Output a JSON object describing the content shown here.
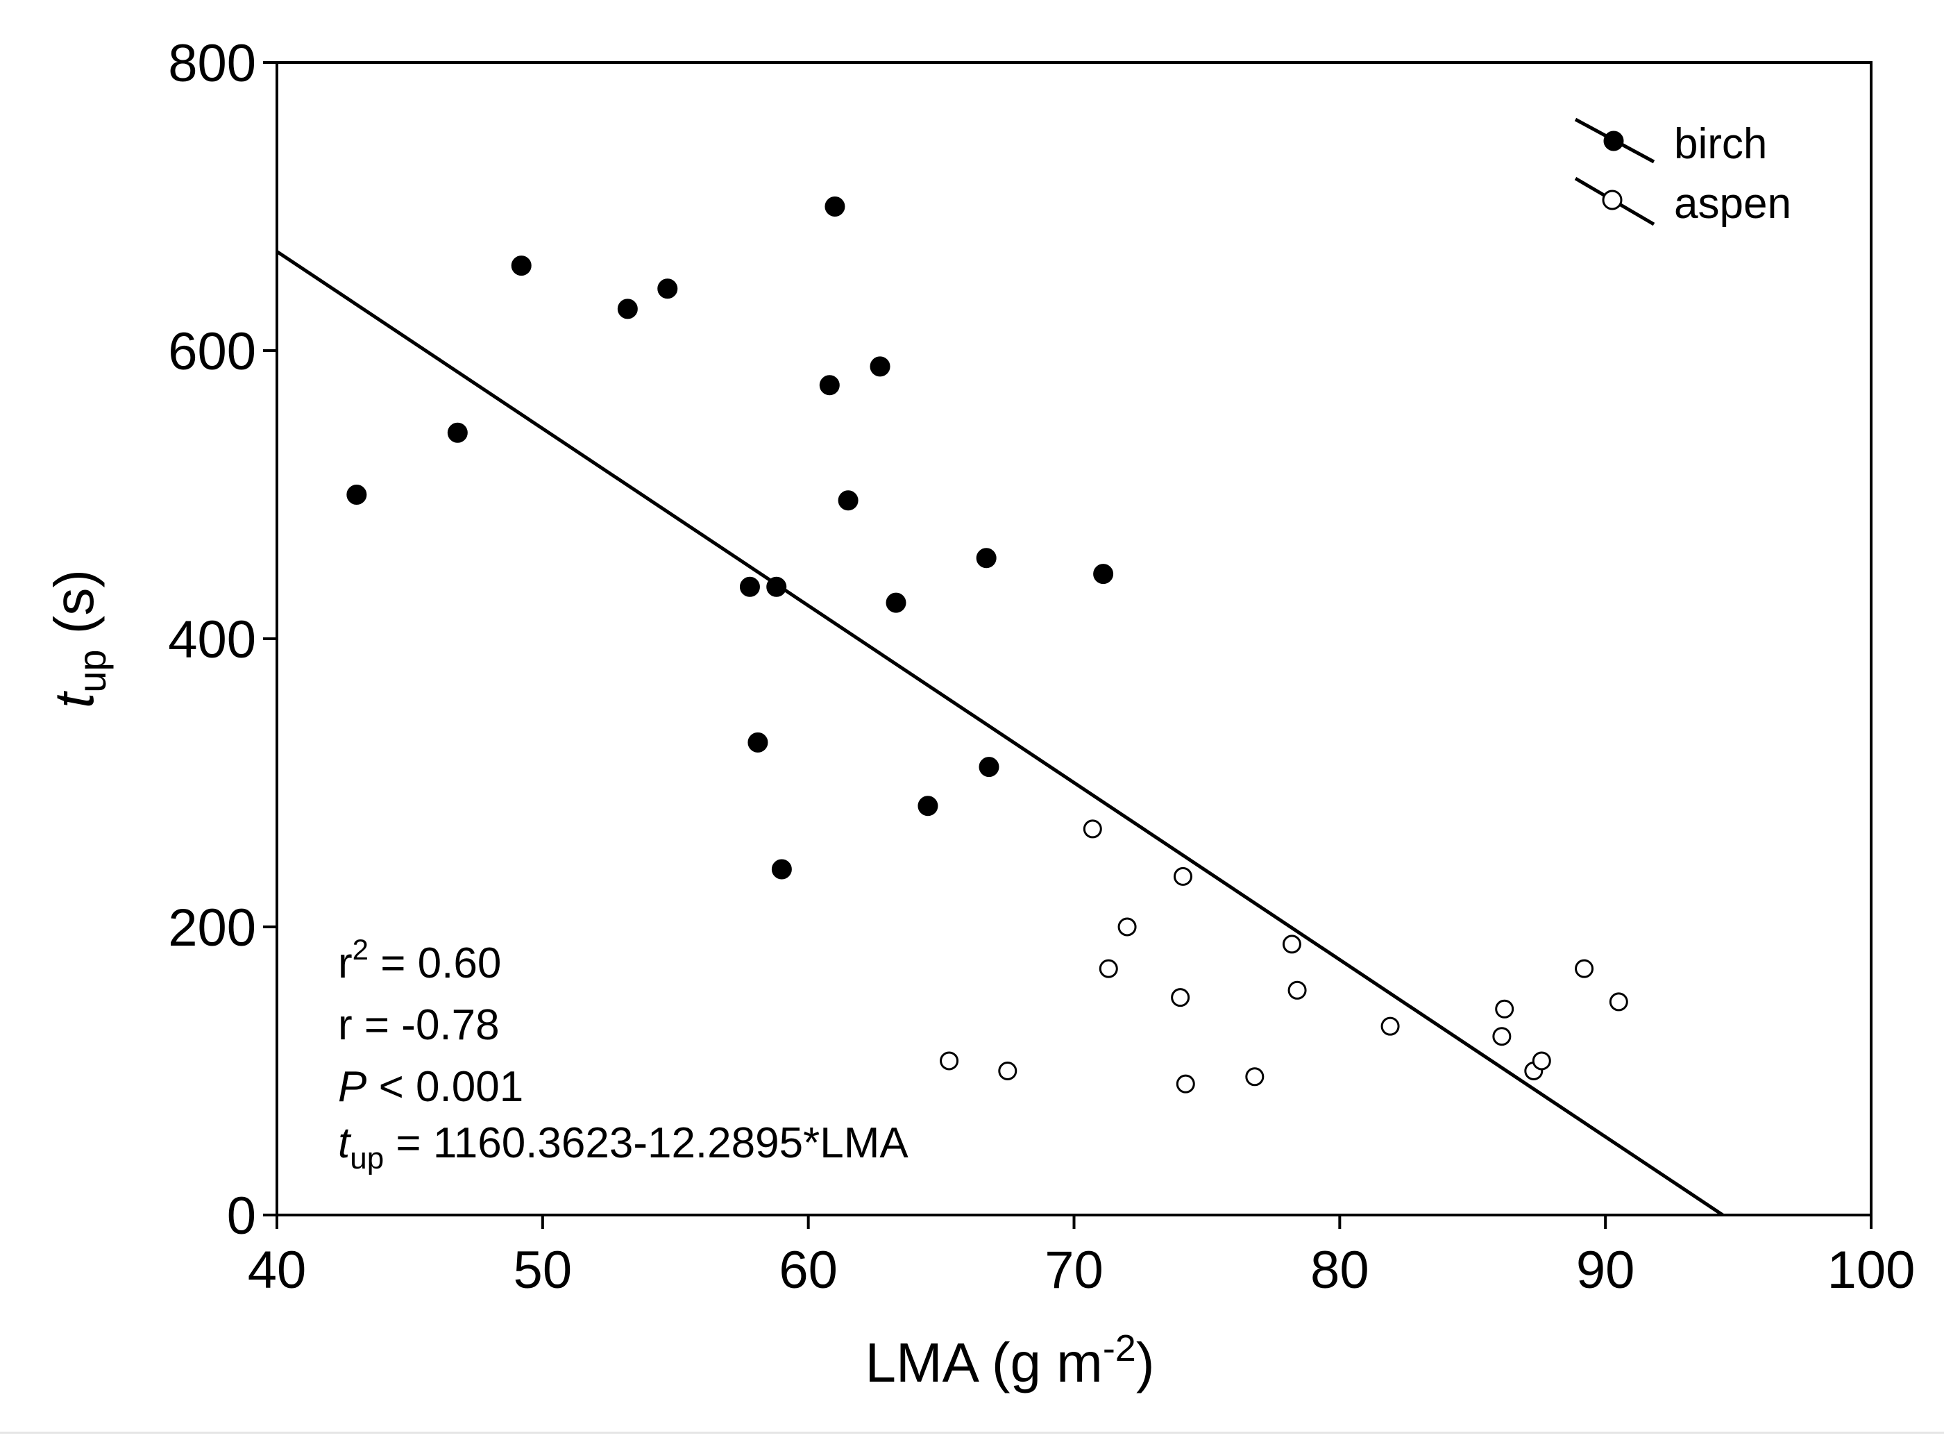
{
  "chart_data": {
    "type": "scatter",
    "xlabel": "LMA (g m",
    "xlabel_sup": "-2",
    "xlabel_end": ")",
    "ylabel_main": "t",
    "ylabel_sub": "up",
    "ylabel_unit": " (s)",
    "xlim": [
      40,
      100
    ],
    "ylim": [
      0,
      800
    ],
    "x_ticks": [
      40,
      50,
      60,
      70,
      80,
      90,
      100
    ],
    "y_ticks": [
      0,
      200,
      400,
      600,
      800
    ],
    "x_tick_labels": [
      "40",
      "50",
      "60",
      "70",
      "80",
      "90",
      "100"
    ],
    "y_tick_labels": [
      "0",
      "200",
      "400",
      "600",
      "800"
    ],
    "legend_position": "top-right",
    "series": [
      {
        "name": "birch",
        "marker": "filled-circle",
        "points": [
          {
            "x": 43.0,
            "y": 500
          },
          {
            "x": 46.8,
            "y": 543
          },
          {
            "x": 49.2,
            "y": 659
          },
          {
            "x": 53.2,
            "y": 629
          },
          {
            "x": 54.7,
            "y": 643
          },
          {
            "x": 57.8,
            "y": 436
          },
          {
            "x": 58.1,
            "y": 328
          },
          {
            "x": 58.8,
            "y": 436
          },
          {
            "x": 59.0,
            "y": 240
          },
          {
            "x": 60.8,
            "y": 576
          },
          {
            "x": 61.0,
            "y": 700
          },
          {
            "x": 61.5,
            "y": 496
          },
          {
            "x": 62.7,
            "y": 589
          },
          {
            "x": 63.3,
            "y": 425
          },
          {
            "x": 64.5,
            "y": 284
          },
          {
            "x": 66.7,
            "y": 456
          },
          {
            "x": 66.8,
            "y": 311
          },
          {
            "x": 71.1,
            "y": 445
          }
        ]
      },
      {
        "name": "aspen",
        "marker": "open-circle",
        "points": [
          {
            "x": 65.3,
            "y": 107
          },
          {
            "x": 67.5,
            "y": 100
          },
          {
            "x": 70.7,
            "y": 268
          },
          {
            "x": 71.3,
            "y": 171
          },
          {
            "x": 72.0,
            "y": 200
          },
          {
            "x": 74.0,
            "y": 151
          },
          {
            "x": 74.1,
            "y": 235
          },
          {
            "x": 74.2,
            "y": 91
          },
          {
            "x": 76.8,
            "y": 96
          },
          {
            "x": 78.2,
            "y": 188
          },
          {
            "x": 78.4,
            "y": 156
          },
          {
            "x": 81.9,
            "y": 131
          },
          {
            "x": 86.1,
            "y": 124
          },
          {
            "x": 86.2,
            "y": 143
          },
          {
            "x": 87.3,
            "y": 100
          },
          {
            "x": 87.6,
            "y": 107
          },
          {
            "x": 89.2,
            "y": 171
          },
          {
            "x": 90.5,
            "y": 148
          }
        ]
      }
    ],
    "regression": {
      "intercept": 1160.3623,
      "slope": -12.2895,
      "x_start": 40,
      "x_end": 94.42
    },
    "annotations": {
      "r2_label": "r",
      "r2_sup": "2",
      "r2_value": " = 0.60",
      "r_line": "r = -0.78",
      "p_italic": "P",
      "p_value": " < 0.001",
      "eq_t": "t",
      "eq_sub": "up",
      "eq_rest": " = 1160.3623-12.2895*LMA"
    }
  }
}
